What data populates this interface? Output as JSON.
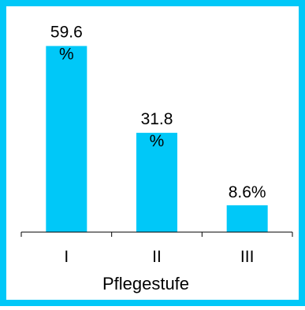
{
  "colors": {
    "frame": "#00c8f8",
    "bar": "#00c8f8",
    "text": "#000000",
    "axis": "#000000"
  },
  "chart_data": {
    "type": "bar",
    "xlabel": "Pflegestufe",
    "categories": [
      "I",
      "II",
      "III"
    ],
    "values": [
      59.6,
      31.8,
      8.6
    ],
    "data_labels": [
      [
        "59.6",
        "%"
      ],
      [
        "31.8",
        "%"
      ],
      [
        "8.6%"
      ]
    ],
    "ylim": [
      0,
      64
    ],
    "grid": false,
    "legend": "none"
  }
}
